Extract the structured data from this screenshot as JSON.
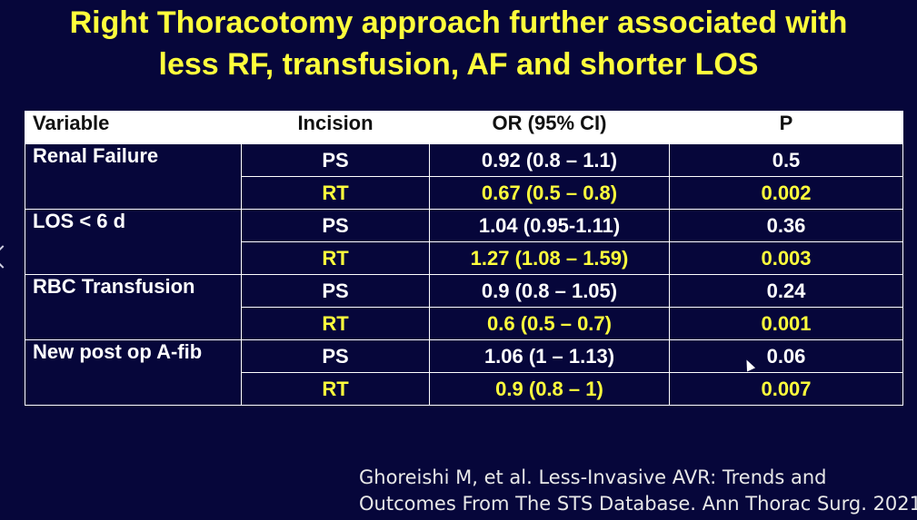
{
  "title": {
    "line1": "Right Thoracotomy approach further associated with",
    "line2": "less RF, transfusion, AF and shorter LOS"
  },
  "table": {
    "headers": [
      "Variable",
      "Incision",
      "OR (95% CI)",
      "P"
    ],
    "groups": [
      {
        "variable": "Renal Failure",
        "rows": [
          {
            "incision": "PS",
            "or": "0.92 (0.8 – 1.1)",
            "p": "0.5"
          },
          {
            "incision": "RT",
            "or": "0.67 (0.5 – 0.8)",
            "p": "0.002"
          }
        ]
      },
      {
        "variable": "LOS < 6 d",
        "rows": [
          {
            "incision": "PS",
            "or": "1.04 (0.95-1.11)",
            "p": "0.36"
          },
          {
            "incision": "RT",
            "or": "1.27 (1.08 – 1.59)",
            "p": "0.003"
          }
        ]
      },
      {
        "variable": "RBC Transfusion",
        "rows": [
          {
            "incision": "PS",
            "or": "0.9 (0.8 – 1.05)",
            "p": "0.24"
          },
          {
            "incision": "RT",
            "or": "0.6 (0.5 – 0.7)",
            "p": "0.001"
          }
        ]
      },
      {
        "variable": "New post op A-fib",
        "rows": [
          {
            "incision": "PS",
            "or": "1.06 (1 – 1.13)",
            "p": "0.06"
          },
          {
            "incision": "RT",
            "or": "0.9 (0.8 – 1)",
            "p": "0.007"
          }
        ]
      }
    ]
  },
  "citation": {
    "line1": "Ghoreishi M, et al. Less-Invasive AVR: Trends and",
    "line2": "Outcomes From The STS Database. Ann Thorac Surg. 2021"
  },
  "colors": {
    "background": "#06063a",
    "title": "#ffff3c",
    "rt_highlight": "#ffff3c",
    "header_bg": "#ffffff"
  }
}
